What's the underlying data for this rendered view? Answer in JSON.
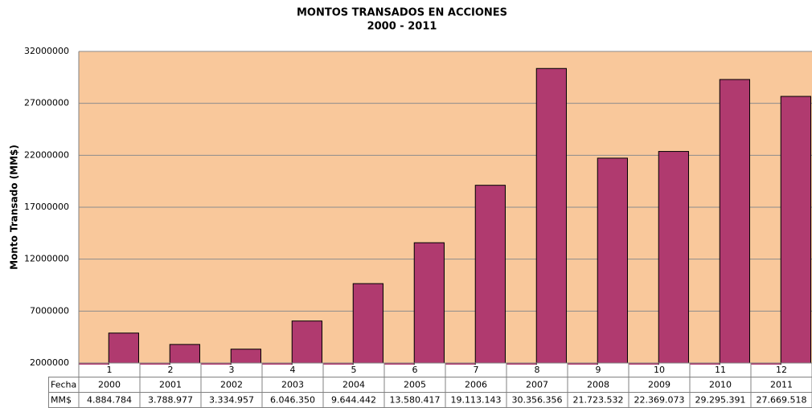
{
  "chart_data": {
    "type": "bar",
    "title": "MONTOS TRANSADOS EN ACCIONES",
    "subtitle": "2000 - 2011",
    "y_label": "Monto Transado (MM$)",
    "categories": [
      "1",
      "2",
      "3",
      "4",
      "5",
      "6",
      "7",
      "8",
      "9",
      "10",
      "11",
      "12"
    ],
    "series": [
      {
        "name": "Fecha",
        "color": "#b03a6f",
        "values": [
          2000,
          2001,
          2002,
          2003,
          2004,
          2005,
          2006,
          2007,
          2008,
          2009,
          2010,
          2011
        ]
      },
      {
        "name": "MM$",
        "color": "#b03a6f",
        "values": [
          4884784,
          3788977,
          3334957,
          6046350,
          9644442,
          13580417,
          19113143,
          30356356,
          21723532,
          22369073,
          29295391,
          27669518
        ],
        "value_labels": [
          "4.884.784",
          "3.788.977",
          "3.334.957",
          "6.046.350",
          "9.644.442",
          "13.580.417",
          "19.113.143",
          "30.356.356",
          "21.723.532",
          "22.369.073",
          "29.295.391",
          "27.669.518"
        ]
      }
    ],
    "ylim": [
      2000000,
      32000000
    ],
    "yticks": [
      2000000,
      7000000,
      12000000,
      17000000,
      22000000,
      27000000,
      32000000
    ],
    "grid": true,
    "plot_background": "#f9c89b"
  }
}
